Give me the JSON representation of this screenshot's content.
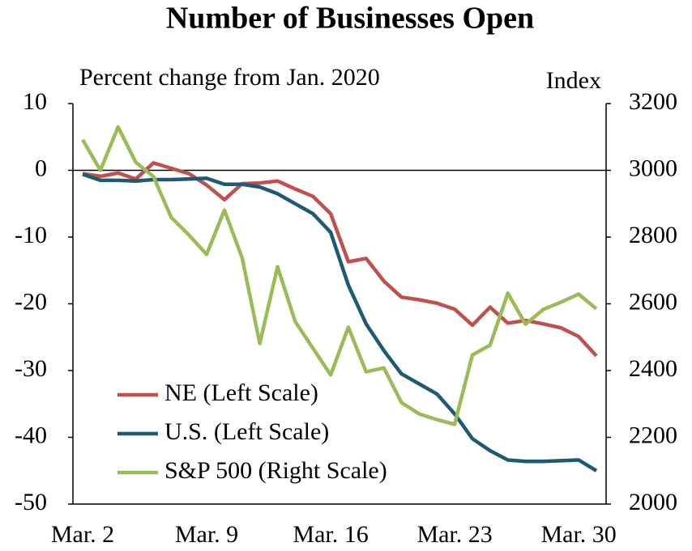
{
  "chart_data": {
    "type": "line",
    "title": "Number of Businesses Open",
    "y_label": "Percent change from Jan. 2020",
    "y2_label": "Index",
    "categories": [
      "Mar. 2",
      null,
      null,
      null,
      null,
      null,
      null,
      "Mar. 9",
      null,
      null,
      null,
      null,
      null,
      null,
      "Mar. 16",
      null,
      null,
      null,
      null,
      null,
      null,
      "Mar. 23",
      null,
      null,
      null,
      null,
      null,
      null,
      "Mar. 30",
      null
    ],
    "ylim": [
      -50,
      10
    ],
    "yticks": [
      -50,
      -40,
      -30,
      -20,
      -10,
      0,
      10
    ],
    "y2lim": [
      2000,
      3200
    ],
    "y2ticks": [
      2000,
      2200,
      2400,
      2600,
      2800,
      3000,
      3200
    ],
    "legend": "lower left",
    "series": [
      {
        "name": "NE (Left Scale)",
        "color": "#c0504d",
        "values": [
          -0.5,
          -0.9,
          -0.4,
          -1.3,
          1.1,
          0.3,
          -0.5,
          -2.2,
          -4.4,
          -2.0,
          -1.9,
          -1.6,
          -2.8,
          -3.9,
          -6.5,
          -13.7,
          -13.2,
          -16.6,
          -19.0,
          -19.4,
          -19.9,
          -20.8,
          -23.2,
          -20.5,
          -22.9,
          -22.5,
          -23.0,
          -23.6,
          -24.9,
          -27.8
        ]
      },
      {
        "name": "U.S. (Left Scale)",
        "color": "#1f5a73",
        "values": [
          -0.6,
          -1.5,
          -1.5,
          -1.6,
          -1.4,
          -1.4,
          -1.3,
          -1.2,
          -2.1,
          -2.1,
          -2.5,
          -3.5,
          -5.0,
          -6.5,
          -9.3,
          -17.2,
          -23.0,
          -27.0,
          -30.5,
          -32.0,
          -33.5,
          -36.5,
          -40.2,
          -42.0,
          -43.4,
          -43.6,
          -43.6,
          -43.5,
          -43.4,
          -45.0
        ]
      },
      {
        "name": "S&P 500 (Right Scale)",
        "color": "#9bbb59",
        "axis": "y2",
        "values": [
          3092,
          3000,
          3130,
          3024,
          2981,
          2859,
          2806,
          2748,
          2881,
          2738,
          2481,
          2711,
          2547,
          2467,
          2387,
          2530,
          2396,
          2408,
          2304,
          2270,
          2253,
          2239,
          2447,
          2476,
          2632,
          2539,
          2583,
          2605,
          2629,
          2585
        ]
      }
    ]
  }
}
